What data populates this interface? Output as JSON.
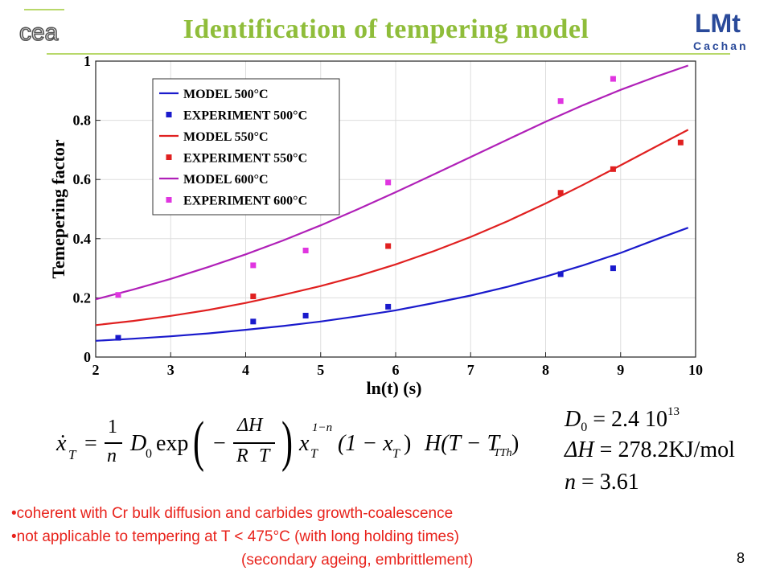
{
  "slide": {
    "title": "Identification of tempering model",
    "page_number": "8",
    "logo_right_text_top": "LMt",
    "logo_right_text_bottom": "Cachan",
    "logo_left_text": "cea"
  },
  "equation": {
    "x_dot": "ẋ",
    "sub_T": "T",
    "equals": "=",
    "one": "1",
    "n": "n",
    "D0": "D",
    "D0_sub": "0",
    "exp": "exp",
    "minus": "−",
    "delta_H": "ΔH",
    "R": "R",
    "T": "T",
    "x": "x",
    "exp_1_minus_n": "1−n",
    "one_minus_x": "(1 − x",
    "close_paren": ")",
    "H_func": "H(T − T",
    "TTh": "TTh",
    "close_paren2": ")"
  },
  "parameters": {
    "D0_label": "D",
    "D0_sub": "0",
    "D0_value": " = 2.4 10",
    "D0_exp": "13",
    "dH_label": "ΔH",
    "dH_value": " = 278.2KJ/mol",
    "n_label": "n",
    "n_value": " = 3.61"
  },
  "bullets": [
    "•coherent with Cr bulk diffusion and carbides growth-coalescence",
    "•not applicable to tempering at T < 475°C (with long holding times)",
    "(secondary ageing, embrittlement)"
  ],
  "chart_data": {
    "type": "line",
    "xlabel": "ln(t) (s)",
    "ylabel": "Temepering factor",
    "xlim": [
      2,
      10
    ],
    "ylim": [
      0,
      1
    ],
    "xticks": [
      "2",
      "3",
      "4",
      "5",
      "6",
      "7",
      "8",
      "9",
      "10"
    ],
    "yticks": [
      "0",
      "0.2",
      "0.4",
      "0.6",
      "0.8",
      "1"
    ],
    "grid": true,
    "legend_position": "top-left",
    "series": [
      {
        "name": "MODEL 500°C",
        "kind": "line",
        "color": "#1a1acc",
        "x": [
          2.0,
          2.5,
          3.0,
          3.5,
          4.0,
          4.5,
          5.0,
          5.5,
          6.0,
          6.5,
          7.0,
          7.5,
          8.0,
          8.5,
          9.0,
          9.5,
          9.9
        ],
        "y": [
          0.055,
          0.062,
          0.07,
          0.08,
          0.092,
          0.105,
          0.12,
          0.138,
          0.158,
          0.182,
          0.208,
          0.238,
          0.272,
          0.31,
          0.352,
          0.4,
          0.437
        ]
      },
      {
        "name": "EXPERIMENT 500°C",
        "kind": "scatter",
        "color": "#1a1acc",
        "x": [
          2.3,
          4.1,
          4.8,
          5.9,
          8.2,
          8.9
        ],
        "y": [
          0.065,
          0.12,
          0.14,
          0.17,
          0.28,
          0.3
        ]
      },
      {
        "name": "MODEL 550°C",
        "kind": "line",
        "color": "#e02020",
        "x": [
          2.0,
          2.5,
          3.0,
          3.5,
          4.0,
          4.5,
          5.0,
          5.5,
          6.0,
          6.5,
          7.0,
          7.5,
          8.0,
          8.5,
          9.0,
          9.5,
          9.9
        ],
        "y": [
          0.108,
          0.122,
          0.139,
          0.159,
          0.183,
          0.21,
          0.24,
          0.274,
          0.313,
          0.357,
          0.406,
          0.46,
          0.519,
          0.582,
          0.648,
          0.715,
          0.768
        ]
      },
      {
        "name": "EXPERIMENT 550°C",
        "kind": "scatter",
        "color": "#e02020",
        "x": [
          4.1,
          5.9,
          8.2,
          8.9,
          9.8
        ],
        "y": [
          0.205,
          0.375,
          0.555,
          0.635,
          0.725
        ]
      },
      {
        "name": "MODEL 600°C",
        "kind": "line",
        "color": "#b020b8",
        "x": [
          2.0,
          2.5,
          3.0,
          3.5,
          4.0,
          4.5,
          5.0,
          5.5,
          6.0,
          6.5,
          7.0,
          7.5,
          8.0,
          8.5,
          9.0,
          9.5,
          9.9
        ],
        "y": [
          0.195,
          0.228,
          0.264,
          0.304,
          0.347,
          0.394,
          0.445,
          0.5,
          0.557,
          0.616,
          0.676,
          0.736,
          0.795,
          0.851,
          0.903,
          0.95,
          0.985
        ]
      },
      {
        "name": "EXPERIMENT 600°C",
        "kind": "scatter",
        "color": "#e035e0",
        "x": [
          2.3,
          4.1,
          4.8,
          5.9,
          8.2,
          8.9
        ],
        "y": [
          0.21,
          0.31,
          0.36,
          0.59,
          0.865,
          0.94
        ]
      }
    ]
  }
}
